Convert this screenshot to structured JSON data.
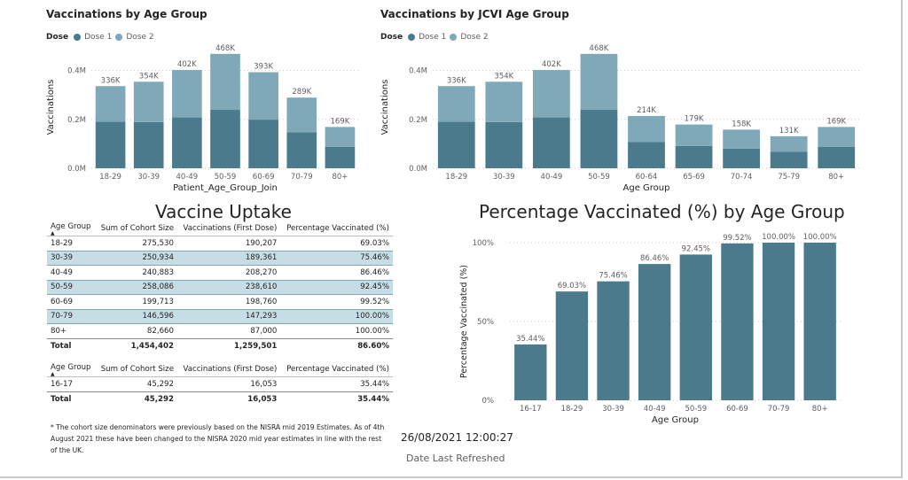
{
  "colors": {
    "dose1": "#4a7a8c",
    "dose2": "#7fa8b8",
    "pct": "#4a7a8c",
    "grid": "#c8c8c8",
    "axis": "#605e5c"
  },
  "chart1": {
    "title": "Vaccinations by Age Group",
    "legend_title": "Dose",
    "legend_items": [
      "Dose 1",
      "Dose 2"
    ],
    "ylabel": "Vaccinations",
    "xlabel": "Patient_Age_Group_Join",
    "yticks": [
      "0.0M",
      "0.2M",
      "0.4M"
    ]
  },
  "chart2": {
    "title": "Vaccinations by JCVI Age Group",
    "legend_title": "Dose",
    "legend_items": [
      "Dose 1",
      "Dose 2"
    ],
    "ylabel": "Vaccinations",
    "xlabel": "Age Group",
    "yticks": [
      "0.0M",
      "0.2M",
      "0.4M"
    ]
  },
  "chart3": {
    "title": "Percentage Vaccinated (%) by Age Group",
    "ylabel": "Percentage Vaccinated (%)",
    "xlabel": "Age Group",
    "yticks": [
      "0%",
      "50%",
      "100%"
    ]
  },
  "chart_data": [
    {
      "type": "bar",
      "title": "Vaccinations by Age Group",
      "categories": [
        "18-29",
        "30-39",
        "40-49",
        "50-59",
        "60-69",
        "70-79",
        "80+"
      ],
      "series": [
        {
          "name": "Dose 1",
          "values": [
            190000,
            189000,
            208000,
            239000,
            199000,
            147000,
            87000
          ]
        },
        {
          "name": "Dose 2",
          "values": [
            146000,
            165000,
            194000,
            229000,
            194000,
            142000,
            82000
          ]
        }
      ],
      "total_labels": [
        "336K",
        "354K",
        "402K",
        "468K",
        "393K",
        "289K",
        "169K"
      ],
      "xlabel": "Patient_Age_Group_Join",
      "ylabel": "Vaccinations",
      "ylim": [
        0,
        500000
      ],
      "stacked": true
    },
    {
      "type": "bar",
      "title": "Vaccinations by JCVI Age Group",
      "categories": [
        "18-29",
        "30-39",
        "40-49",
        "50-59",
        "60-64",
        "65-69",
        "70-74",
        "75-79",
        "80+"
      ],
      "series": [
        {
          "name": "Dose 1",
          "values": [
            190000,
            189000,
            208000,
            239000,
            108000,
            91000,
            80000,
            67000,
            87000
          ]
        },
        {
          "name": "Dose 2",
          "values": [
            146000,
            165000,
            194000,
            229000,
            106000,
            88000,
            78000,
            64000,
            82000
          ]
        }
      ],
      "total_labels": [
        "336K",
        "354K",
        "402K",
        "468K",
        "214K",
        "179K",
        "158K",
        "131K",
        "169K"
      ],
      "xlabel": "Age Group",
      "ylabel": "Vaccinations",
      "ylim": [
        0,
        500000
      ],
      "stacked": true
    },
    {
      "type": "bar",
      "title": "Percentage Vaccinated (%) by Age Group",
      "categories": [
        "16-17",
        "18-29",
        "30-39",
        "40-49",
        "50-59",
        "60-69",
        "70-79",
        "80+"
      ],
      "values": [
        35.44,
        69.03,
        75.46,
        86.46,
        92.45,
        99.52,
        100.0,
        100.0
      ],
      "labels": [
        "35.44%",
        "69.03%",
        "75.46%",
        "86.46%",
        "92.45%",
        "99.52%",
        "100.00%",
        "100.00%"
      ],
      "xlabel": "Age Group",
      "ylabel": "Percentage Vaccinated (%)",
      "ylim": [
        0,
        100
      ]
    }
  ],
  "uptake": {
    "title": "Vaccine Uptake",
    "headers": [
      "Age Group",
      "Sum of Cohort Size",
      "Vaccinations (First Dose)",
      "Percentage Vaccinated (%)"
    ],
    "rows": [
      [
        "18-29",
        "275,530",
        "190,207",
        "69.03%"
      ],
      [
        "30-39",
        "250,934",
        "189,361",
        "75.46%"
      ],
      [
        "40-49",
        "240,883",
        "208,270",
        "86.46%"
      ],
      [
        "50-59",
        "258,086",
        "238,610",
        "92.45%"
      ],
      [
        "60-69",
        "199,713",
        "198,760",
        "99.52%"
      ],
      [
        "70-79",
        "146,596",
        "147,293",
        "100.00%"
      ],
      [
        "80+",
        "82,660",
        "87,000",
        "100.00%"
      ]
    ],
    "total": [
      "Total",
      "1,454,402",
      "1,259,501",
      "86.60%"
    ]
  },
  "uptake2": {
    "headers": [
      "Age Group",
      "Sum of Cohort Size",
      "Vaccinations (First Dose)",
      "Percentage Vaccinated (%)"
    ],
    "rows": [
      [
        "16-17",
        "45,292",
        "16,053",
        "35.44%"
      ]
    ],
    "total": [
      "Total",
      "45,292",
      "16,053",
      "35.44%"
    ]
  },
  "footnote": "* The cohort size denominators were previously based on the NISRA mid 2019 Estimates. As of 4th August 2021 these have been changed to the NISRA 2020 mid year estimates in line with the rest of the UK.",
  "refresh": {
    "time": "26/08/2021 12:00:27",
    "label": "Date Last Refreshed"
  }
}
